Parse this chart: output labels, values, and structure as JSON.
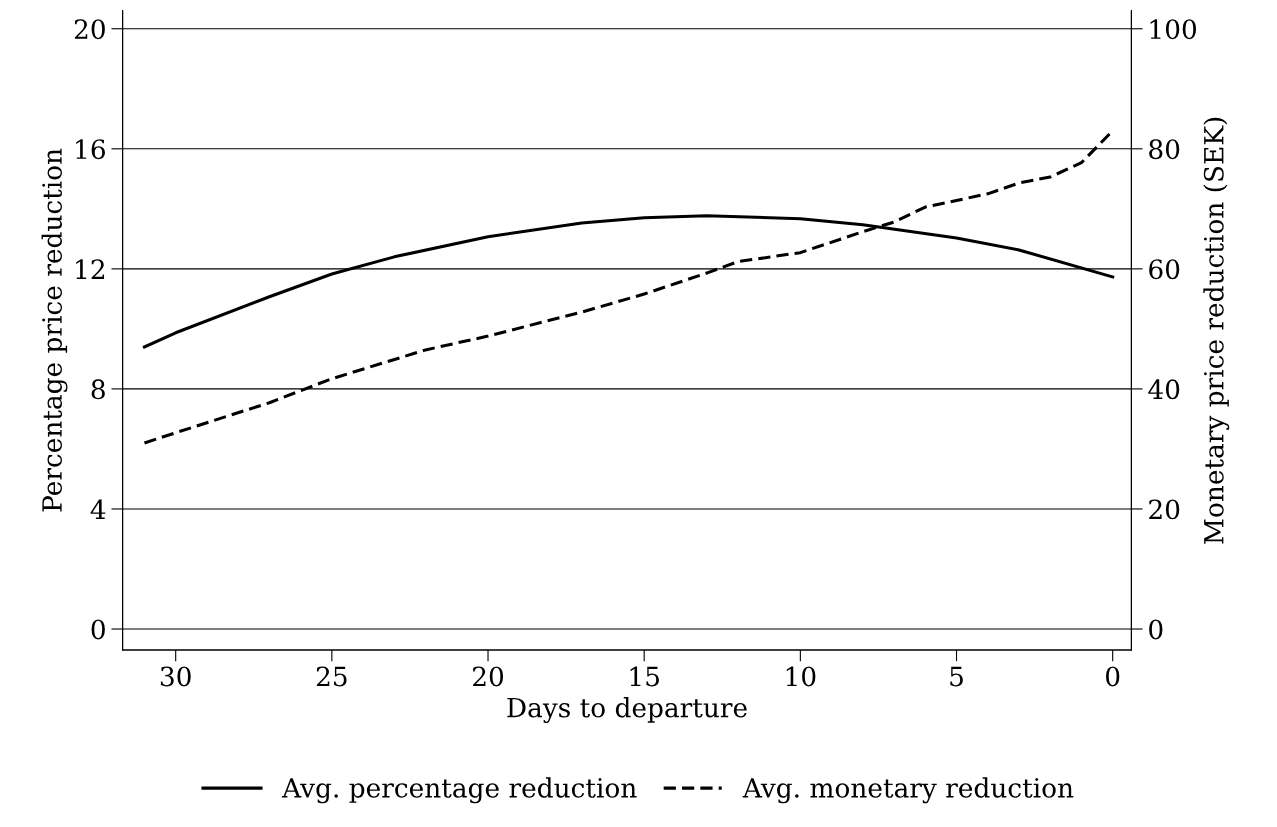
{
  "chart_data": {
    "type": "line",
    "xlabel": "Days to departure",
    "ylabel": "Percentage price reduction",
    "y2label": "Monetary price reduction (SEK)",
    "xlim": [
      31.7,
      -0.6
    ],
    "xticks": [
      30,
      25,
      20,
      15,
      10,
      5,
      0
    ],
    "ylim": [
      -0.7,
      20.6
    ],
    "yticks": [
      0,
      4,
      8,
      12,
      16,
      20
    ],
    "y2lim": [
      -3.5,
      103
    ],
    "y2ticks": [
      0,
      20,
      40,
      60,
      80,
      100
    ],
    "grid": "y",
    "legend": "bottom",
    "series": [
      {
        "name": "Avg. percentage reduction",
        "color": "#000000",
        "line_style": "solid",
        "x": [
          31,
          30,
          27,
          25,
          23,
          20,
          17,
          15,
          13,
          10,
          8,
          5,
          3,
          0
        ],
        "values": [
          9.4,
          9.87,
          11.07,
          11.83,
          12.4,
          13.07,
          13.53,
          13.7,
          13.77,
          13.67,
          13.47,
          13.03,
          12.63,
          11.73
        ]
      },
      {
        "name": "Avg. monetary reduction",
        "color": "#000000",
        "line_style": "dashed",
        "axis": "y2",
        "x": [
          31,
          30,
          27,
          25,
          22,
          20,
          17,
          15,
          13,
          12,
          10,
          8,
          7,
          6,
          4,
          3,
          2,
          1,
          0
        ],
        "values": [
          31,
          32.7,
          37.7,
          41.7,
          46.5,
          48.8,
          52.8,
          55.8,
          59.3,
          61.2,
          62.7,
          66.2,
          67.8,
          70.3,
          72.5,
          74.3,
          75.3,
          77.7,
          83
        ]
      }
    ]
  }
}
